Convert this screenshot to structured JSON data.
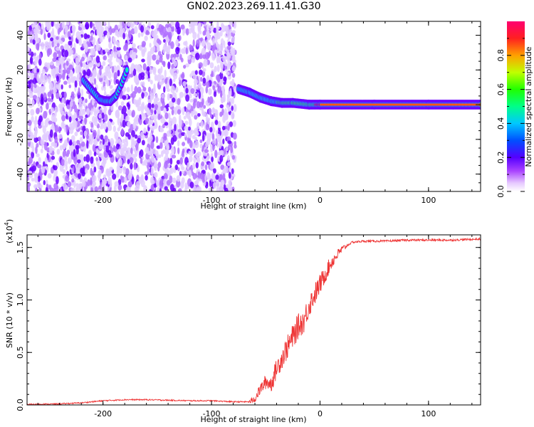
{
  "page_title": "GN02.2023.269.11.41.G30",
  "chart_data": [
    {
      "type": "heatmap",
      "xlabel": "Height of straight line (km)",
      "ylabel": "Frequency (Hz)",
      "xlim": [
        -270,
        148
      ],
      "ylim": [
        -50,
        48
      ],
      "x_ticks": [
        -200,
        -100,
        0,
        100
      ],
      "y_ticks": [
        -40,
        -20,
        0,
        20,
        40
      ],
      "colorbar": {
        "label": "Normalized spectral amplitude",
        "range": [
          0.0,
          1.0
        ],
        "ticks": [
          0.0,
          0.2,
          0.4,
          0.6,
          0.8
        ],
        "colormap": [
          "#ffffff",
          "#cc88ff",
          "#7a00ff",
          "#0000ff",
          "#00c8ff",
          "#00ff40",
          "#c8ff00",
          "#ff8000",
          "#ff0040"
        ]
      },
      "noise_region_x": [
        -270,
        -78
      ],
      "series": [
        {
          "label_points": [
            [
              -218,
              14
            ],
            [
              -210,
              8
            ],
            [
              -203,
              3
            ],
            [
              -198,
              2
            ],
            [
              -193,
              2
            ],
            [
              -188,
              5
            ],
            [
              -183,
              12
            ],
            [
              -178,
              20
            ]
          ]
        },
        {
          "label_points": [
            [
              -75,
              9
            ],
            [
              -65,
              7
            ],
            [
              -55,
              4
            ],
            [
              -45,
              2
            ],
            [
              -35,
              1
            ],
            [
              -25,
              1
            ],
            [
              -10,
              0
            ],
            [
              0,
              0
            ],
            [
              50,
              0
            ],
            [
              100,
              0
            ],
            [
              148,
              0
            ]
          ]
        }
      ],
      "grid": false
    },
    {
      "type": "line",
      "xlabel": "Height of straight line (km)",
      "ylabel": "SNR (10 * v/v)",
      "y_scale_label": "(x10",
      "y_scale_exp": "4",
      "y_scale_close": ")",
      "xlim": [
        -270,
        148
      ],
      "ylim": [
        0,
        1.62
      ],
      "x_ticks": [
        -200,
        -100,
        0,
        100
      ],
      "y_ticks": [
        0.0,
        0.5,
        1.0,
        1.5
      ],
      "y_tick_labels": [
        "0.0",
        "0.5",
        "1.0",
        "1.5"
      ],
      "series": [
        {
          "color": "#ee3333",
          "x": [
            -270,
            -240,
            -220,
            -200,
            -180,
            -160,
            -140,
            -120,
            -100,
            -80,
            -65,
            -60,
            -55,
            -50,
            -45,
            -40,
            -35,
            -30,
            -25,
            -20,
            -15,
            -10,
            -5,
            0,
            5,
            10,
            15,
            20,
            25,
            30,
            40,
            60,
            80,
            100,
            120,
            148
          ],
          "values": [
            0.005,
            0.01,
            0.02,
            0.04,
            0.05,
            0.05,
            0.045,
            0.04,
            0.04,
            0.03,
            0.03,
            0.06,
            0.15,
            0.22,
            0.2,
            0.35,
            0.45,
            0.55,
            0.65,
            0.75,
            0.8,
            0.95,
            1.05,
            1.15,
            1.25,
            1.35,
            1.42,
            1.48,
            1.52,
            1.55,
            1.56,
            1.56,
            1.57,
            1.57,
            1.57,
            1.58
          ]
        }
      ],
      "grid": false
    }
  ]
}
